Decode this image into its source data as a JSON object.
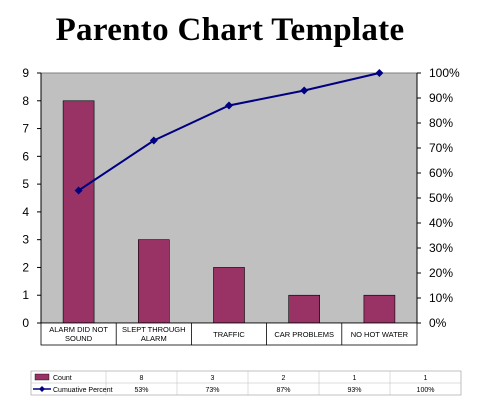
{
  "title": "Parento Chart Template",
  "chart_data": {
    "type": "bar",
    "categories": [
      [
        "ALARM DID NOT",
        "SOUND"
      ],
      [
        "SLEPT THROUGH",
        "ALARM"
      ],
      [
        "TRAFFIC"
      ],
      [
        "CAR PROBLEMS"
      ],
      [
        "NO HOT WATER"
      ]
    ],
    "series": [
      {
        "name": "Count",
        "type": "bar",
        "axis": "left",
        "color": "#993366",
        "values": [
          8,
          3,
          2,
          1,
          1
        ]
      },
      {
        "name": "Cumuative Percent",
        "type": "line",
        "axis": "right",
        "color": "#000080",
        "values": [
          53,
          73,
          87,
          93,
          100
        ]
      }
    ],
    "ylim_left": [
      0,
      9
    ],
    "yticks_left": [
      "0",
      "1",
      "2",
      "3",
      "4",
      "5",
      "6",
      "7",
      "8",
      "9"
    ],
    "ylim_right": [
      0,
      100
    ],
    "yticks_right": [
      "0%",
      "10%",
      "20%",
      "30%",
      "40%",
      "50%",
      "60%",
      "70%",
      "80%",
      "90%",
      "100%"
    ],
    "plot_background": "#c0c0c0",
    "grid": false,
    "legend": "data-table-below",
    "data_table": {
      "rows": [
        {
          "label": "Count",
          "cells": [
            "8",
            "3",
            "2",
            "1",
            "1"
          ]
        },
        {
          "label": "Cumuative Percent",
          "cells": [
            "53%",
            "73%",
            "87%",
            "93%",
            "100%"
          ]
        }
      ]
    }
  }
}
